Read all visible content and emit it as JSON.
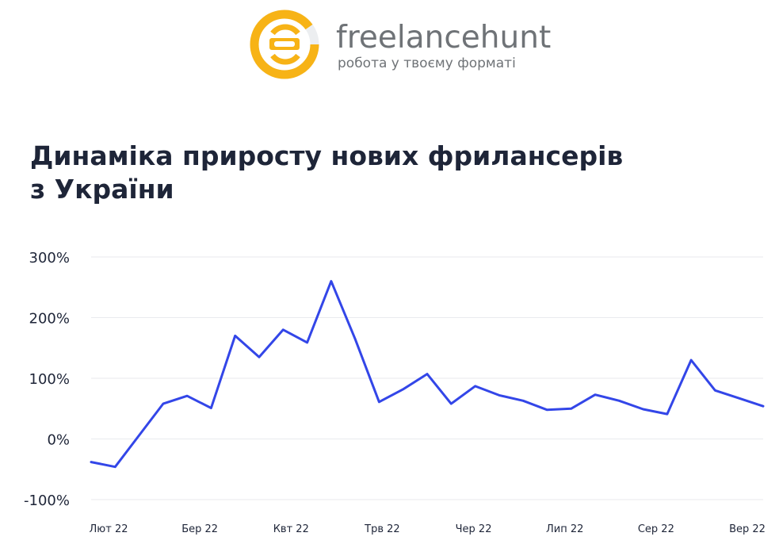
{
  "logo": {
    "name": "freelancehunt",
    "tagline": "робота у твоєму форматі",
    "colors": {
      "ring": "#f7b316",
      "ring_light": "#eceef0"
    }
  },
  "title_lines": [
    "Динаміка приросту нових фрилансерів",
    "з України"
  ],
  "colors": {
    "line": "#3346e8",
    "title": "#1e2538",
    "grid": "#e9eaee",
    "ticks": "#1e2538"
  },
  "chart_data": {
    "type": "line",
    "title": "Динаміка приросту нових фрилансерів з України",
    "xlabel": "",
    "ylabel": "",
    "ylim": [
      -100,
      300
    ],
    "y_ticks": [
      "300%",
      "200%",
      "100%",
      "0%",
      "-100%"
    ],
    "y_tick_values": [
      300,
      200,
      100,
      0,
      -100
    ],
    "x_tick_labels": [
      "Лют 22",
      "Бер 22",
      "Квт 22",
      "Трв 22",
      "Чер 22",
      "Лип 22",
      "Сер 22",
      "Вер 22"
    ],
    "grid": true,
    "series": [
      {
        "values": [
          -38,
          -46,
          6,
          58,
          71,
          51,
          170,
          135,
          180,
          159,
          260,
          165,
          61,
          82,
          107,
          58,
          87,
          72,
          63,
          48,
          50,
          73,
          63,
          49,
          41,
          130,
          80,
          67,
          54
        ]
      }
    ]
  }
}
